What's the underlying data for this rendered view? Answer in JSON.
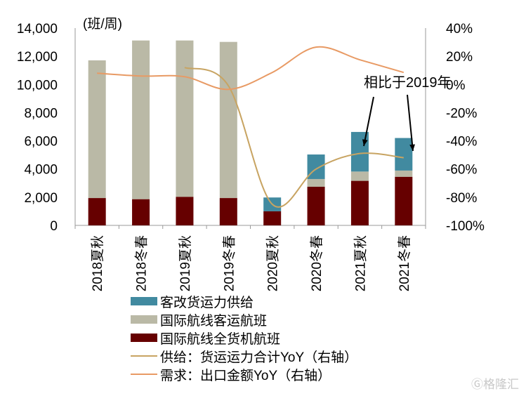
{
  "chart_data": {
    "type": "bar",
    "stacked": true,
    "unit_label": "(班/周)",
    "categories": [
      "2018夏秋",
      "2018冬春",
      "2019夏秋",
      "2019冬春",
      "2020夏秋",
      "2020冬春",
      "2021夏秋",
      "2021冬春"
    ],
    "y_left": {
      "range": [
        0,
        14000
      ],
      "ticks": [
        "0",
        "2,000",
        "4,000",
        "6,000",
        "8,000",
        "10,000",
        "12,000",
        "14,000"
      ]
    },
    "y_right": {
      "range": [
        -100,
        40
      ],
      "ticks": [
        "-100%",
        "-80%",
        "-60%",
        "-40%",
        "-20%",
        "0%",
        "20%",
        "40%"
      ]
    },
    "grid": false,
    "legend_position": "bottom",
    "series": [
      {
        "name": "国际航线全货机航班",
        "kind": "bar",
        "color": "#660000",
        "values": [
          1940,
          1860,
          2030,
          1940,
          1000,
          2740,
          3160,
          3450
        ]
      },
      {
        "name": "国际航线客运航班",
        "kind": "bar",
        "color": "#bab9a6",
        "values": [
          9770,
          11260,
          11090,
          11080,
          0,
          550,
          660,
          440
        ]
      },
      {
        "name": "客改货运力供给",
        "kind": "bar",
        "color": "#418aa0",
        "values": [
          0,
          0,
          0,
          0,
          980,
          1740,
          2810,
          2310
        ]
      },
      {
        "name": "供给：货运运力合计YoY（右轴）",
        "kind": "line",
        "axis": "right",
        "color": "#c8a462",
        "values": [
          null,
          null,
          12,
          -1,
          -85,
          -60,
          -49,
          -52
        ]
      },
      {
        "name": "需求：出口金额YoY（右轴）",
        "kind": "line",
        "axis": "right",
        "color": "#e89a64",
        "values": [
          8,
          6,
          5.5,
          -3.5,
          8.5,
          26.5,
          17.5,
          8.5
        ]
      }
    ],
    "annotation": {
      "text": "相比于2019年",
      "targets": [
        "2021夏秋",
        "2021冬春"
      ]
    }
  },
  "watermark": "格隆汇"
}
